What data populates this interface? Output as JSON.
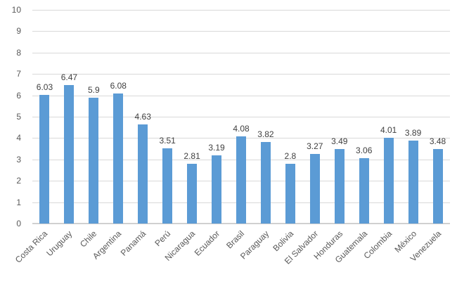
{
  "chart_data": {
    "type": "bar",
    "title": "",
    "xlabel": "",
    "ylabel": "",
    "categories": [
      "Costa Rica",
      "Uruguay",
      "Chile",
      "Argentina",
      "Panamá",
      "Perú",
      "Nicaragua",
      "Ecuador",
      "Brasil",
      "Paraguay",
      "Bolivia",
      "El Salvador",
      "Honduras",
      "Guatemala",
      "Colombia",
      "México",
      "Venezuela"
    ],
    "values": [
      6.03,
      6.47,
      5.9,
      6.08,
      4.63,
      3.51,
      2.81,
      3.19,
      4.08,
      3.82,
      2.8,
      3.27,
      3.49,
      3.06,
      4.01,
      3.89,
      3.48
    ],
    "value_labels": [
      "6.03",
      "6.47",
      "5.9",
      "6.08",
      "4.63",
      "3.51",
      "2.81",
      "3.19",
      "4.08",
      "3.82",
      "2.8",
      "3.27",
      "3.49",
      "3.06",
      "4.01",
      "3.89",
      "3.48"
    ],
    "ytick_labels": [
      "0",
      "1",
      "2",
      "3",
      "4",
      "5",
      "6",
      "7",
      "8",
      "9",
      "10"
    ],
    "ylim": [
      0,
      10
    ],
    "ytick_step": 1,
    "grid": true,
    "legend": false,
    "colors": {
      "bar": "#5b9bd5",
      "gridline": "#d9d9d9",
      "axis_line": "#d0d0d0",
      "data_label": "#404040",
      "tick_label": "#595959",
      "background": "#ffffff"
    }
  }
}
